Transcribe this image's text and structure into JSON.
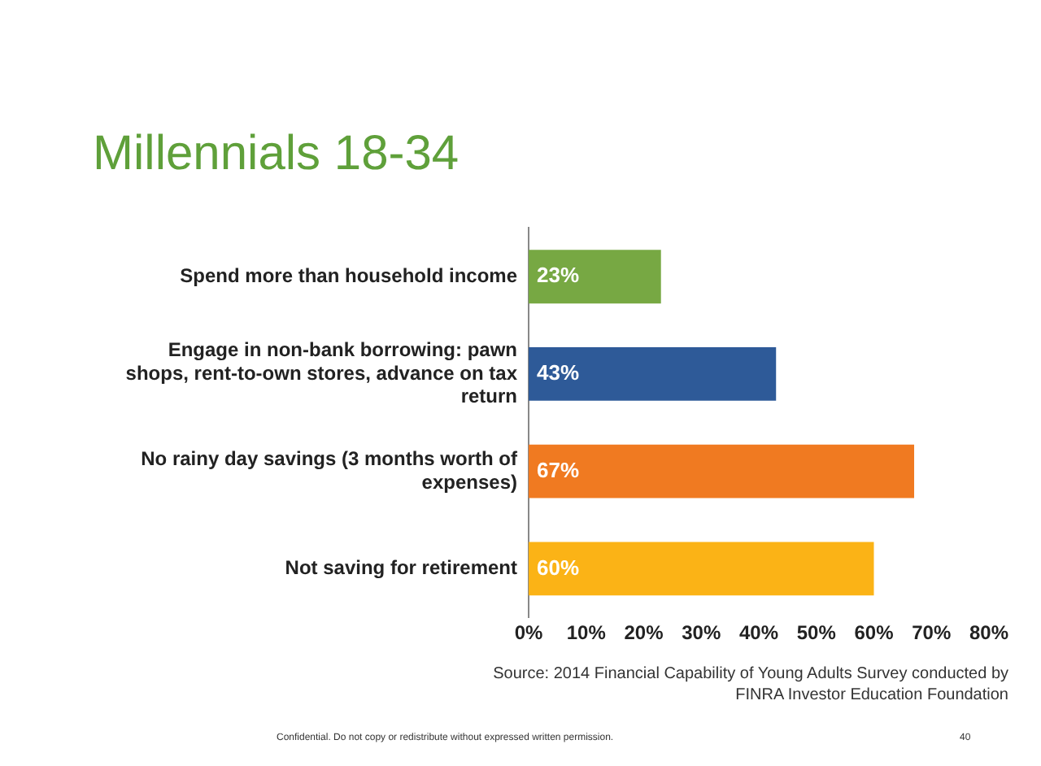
{
  "chart_data": {
    "type": "bar",
    "orientation": "horizontal",
    "title": "Millennials 18-34",
    "categories": [
      "Spend more than household income",
      "Engage in non-bank borrowing: pawn shops, rent-to-own stores, advance on tax return",
      "No rainy day savings (3 months worth of expenses)",
      "Not saving for retirement"
    ],
    "values": [
      23,
      43,
      67,
      60
    ],
    "colors": [
      "#77a843",
      "#2e5a98",
      "#f07a21",
      "#fbb316"
    ],
    "value_labels": [
      "23%",
      "43%",
      "67%",
      "60%"
    ],
    "xlim": [
      0,
      80
    ],
    "xticks": [
      {
        "value": 0,
        "label": "0%"
      },
      {
        "value": 10,
        "label": "10%"
      },
      {
        "value": 20,
        "label": "20%"
      },
      {
        "value": 30,
        "label": "30%"
      },
      {
        "value": 40,
        "label": "40%"
      },
      {
        "value": 50,
        "label": "50%"
      },
      {
        "value": 60,
        "label": "60%"
      },
      {
        "value": 70,
        "label": "70%"
      },
      {
        "value": 80,
        "label": "80%"
      }
    ],
    "grid": false,
    "legend": false,
    "annotations": [
      "Source: 2014 Financial Capability of Young Adults Survey conducted by FINRA Investor Education Foundation",
      "Confidential. Do not copy or redistribute without expressed written permission.",
      "40"
    ]
  }
}
